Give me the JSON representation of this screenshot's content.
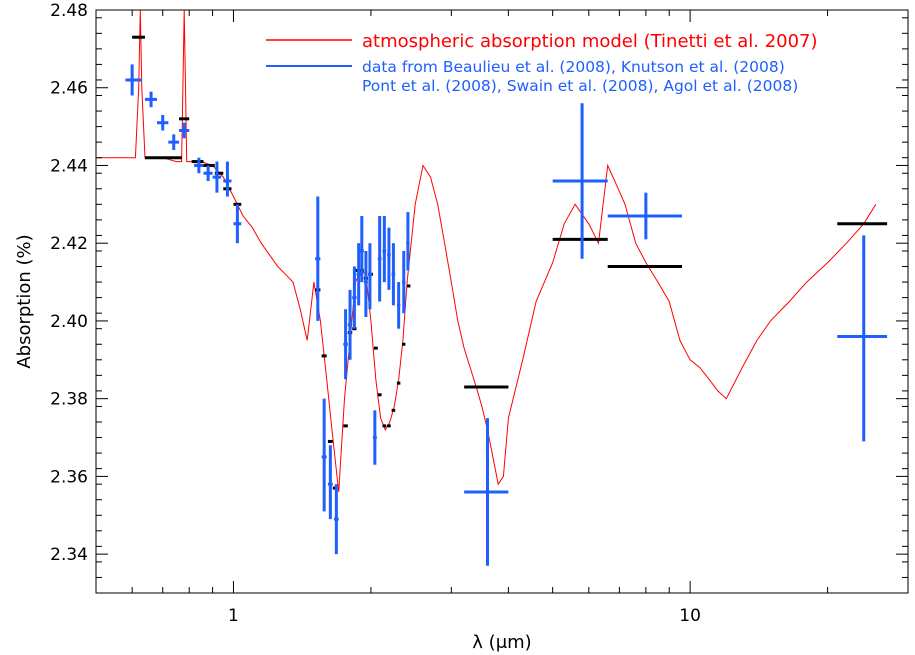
{
  "chart_data": {
    "type": "line",
    "title": "",
    "xlabel": "λ (μm)",
    "ylabel": "Absorption (%)",
    "x_scale": "log",
    "xlim": [
      0.5,
      30
    ],
    "ylim": [
      2.33,
      2.48
    ],
    "grid": false,
    "legend_position": "top-right",
    "colors": {
      "model": "#ff0000",
      "data": "#1f5fff",
      "binned_model": "#000000",
      "axes": "#000000"
    },
    "x_ticks": [
      {
        "value": 1,
        "label": "1"
      },
      {
        "value": 10,
        "label": "10"
      }
    ],
    "y_ticks": [
      {
        "value": 2.34,
        "label": "2.34"
      },
      {
        "value": 2.36,
        "label": "2.36"
      },
      {
        "value": 2.38,
        "label": "2.38"
      },
      {
        "value": 2.4,
        "label": "2.40"
      },
      {
        "value": 2.42,
        "label": "2.42"
      },
      {
        "value": 2.44,
        "label": "2.44"
      },
      {
        "value": 2.46,
        "label": "2.46"
      },
      {
        "value": 2.48,
        "label": "2.48"
      }
    ],
    "legend": {
      "model_label": "atmospheric absorption model (Tinetti et al. 2007)",
      "data_label_line1": "data from Beaulieu et al. (2008), Knutson et al. (2008)",
      "data_label_line2": "Pont et al. (2008), Swain et al. (2008), Agol et al. (2008)"
    },
    "series": [
      {
        "name": "atmospheric absorption model (Tinetti et al. 2007)",
        "kind": "line",
        "x": [
          0.5,
          0.61,
          0.62,
          0.625,
          0.63,
          0.64,
          0.65,
          0.7,
          0.75,
          0.77,
          0.775,
          0.78,
          0.785,
          0.79,
          0.8,
          0.85,
          0.9,
          0.95,
          1.0,
          1.05,
          1.1,
          1.15,
          1.2,
          1.25,
          1.3,
          1.35,
          1.4,
          1.45,
          1.5,
          1.55,
          1.6,
          1.65,
          1.7,
          1.75,
          1.8,
          1.85,
          1.9,
          1.95,
          2.0,
          2.05,
          2.1,
          2.15,
          2.2,
          2.25,
          2.3,
          2.35,
          2.4,
          2.5,
          2.6,
          2.7,
          2.8,
          2.9,
          3.0,
          3.1,
          3.2,
          3.3,
          3.4,
          3.5,
          3.6,
          3.7,
          3.8,
          3.9,
          4.0,
          4.3,
          4.6,
          5.0,
          5.3,
          5.6,
          6.0,
          6.3,
          6.6,
          6.9,
          7.2,
          7.6,
          8.0,
          8.5,
          9.0,
          9.5,
          10.0,
          10.5,
          11.0,
          11.5,
          12.0,
          13.0,
          14.0,
          15.0,
          16.5,
          18.0,
          20.0,
          22.0,
          24.0,
          25.5
        ],
        "y": [
          2.442,
          2.442,
          2.46,
          2.48,
          2.46,
          2.442,
          2.442,
          2.442,
          2.441,
          2.441,
          2.46,
          2.48,
          2.46,
          2.441,
          2.441,
          2.441,
          2.44,
          2.437,
          2.432,
          2.427,
          2.424,
          2.42,
          2.417,
          2.414,
          2.412,
          2.41,
          2.403,
          2.395,
          2.41,
          2.4,
          2.385,
          2.37,
          2.356,
          2.38,
          2.395,
          2.41,
          2.413,
          2.412,
          2.4,
          2.385,
          2.375,
          2.372,
          2.374,
          2.378,
          2.385,
          2.395,
          2.41,
          2.43,
          2.44,
          2.437,
          2.43,
          2.42,
          2.41,
          2.4,
          2.393,
          2.388,
          2.383,
          2.378,
          2.372,
          2.365,
          2.358,
          2.36,
          2.375,
          2.39,
          2.405,
          2.415,
          2.425,
          2.43,
          2.425,
          2.42,
          2.44,
          2.435,
          2.43,
          2.42,
          2.415,
          2.41,
          2.405,
          2.395,
          2.39,
          2.388,
          2.385,
          2.382,
          2.38,
          2.388,
          2.395,
          2.4,
          2.405,
          2.41,
          2.415,
          2.42,
          2.425,
          2.43
        ]
      },
      {
        "name": "",
        "kind": "binned",
        "points": [
          {
            "x": 0.62,
            "x_lo": 0.6,
            "x_hi": 0.64,
            "y": 2.473
          },
          {
            "x": 0.7,
            "x_lo": 0.64,
            "x_hi": 0.77,
            "y": 2.442
          },
          {
            "x": 0.78,
            "x_lo": 0.76,
            "x_hi": 0.8,
            "y": 2.452
          },
          {
            "x": 0.83,
            "x_lo": 0.81,
            "x_hi": 0.86,
            "y": 2.441
          },
          {
            "x": 0.88,
            "x_lo": 0.86,
            "x_hi": 0.91,
            "y": 2.44
          },
          {
            "x": 0.93,
            "x_lo": 0.91,
            "x_hi": 0.95,
            "y": 2.438
          },
          {
            "x": 0.97,
            "x_lo": 0.95,
            "x_hi": 0.99,
            "y": 2.434
          },
          {
            "x": 1.02,
            "x_lo": 1.0,
            "x_hi": 1.04,
            "y": 2.43
          },
          {
            "x": 1.53,
            "x_lo": 1.51,
            "x_hi": 1.55,
            "y": 2.408
          },
          {
            "x": 1.58,
            "x_lo": 1.56,
            "x_hi": 1.6,
            "y": 2.391
          },
          {
            "x": 1.63,
            "x_lo": 1.61,
            "x_hi": 1.65,
            "y": 2.369
          },
          {
            "x": 1.67,
            "x_lo": 1.65,
            "x_hi": 1.69,
            "y": 2.357
          },
          {
            "x": 1.76,
            "x_lo": 1.74,
            "x_hi": 1.78,
            "y": 2.373
          },
          {
            "x": 1.8,
            "x_lo": 1.78,
            "x_hi": 1.82,
            "y": 2.397
          },
          {
            "x": 1.84,
            "x_lo": 1.82,
            "x_hi": 1.86,
            "y": 2.398
          },
          {
            "x": 1.87,
            "x_lo": 1.85,
            "x_hi": 1.89,
            "y": 2.413
          },
          {
            "x": 1.91,
            "x_lo": 1.89,
            "x_hi": 1.93,
            "y": 2.413
          },
          {
            "x": 1.95,
            "x_lo": 1.93,
            "x_hi": 1.97,
            "y": 2.411
          },
          {
            "x": 2.0,
            "x_lo": 1.98,
            "x_hi": 2.02,
            "y": 2.412
          },
          {
            "x": 2.05,
            "x_lo": 2.03,
            "x_hi": 2.07,
            "y": 2.393
          },
          {
            "x": 2.09,
            "x_lo": 2.07,
            "x_hi": 2.11,
            "y": 2.381
          },
          {
            "x": 2.14,
            "x_lo": 2.12,
            "x_hi": 2.16,
            "y": 2.373
          },
          {
            "x": 2.19,
            "x_lo": 2.17,
            "x_hi": 2.21,
            "y": 2.373
          },
          {
            "x": 2.24,
            "x_lo": 2.22,
            "x_hi": 2.26,
            "y": 2.377
          },
          {
            "x": 2.3,
            "x_lo": 2.28,
            "x_hi": 2.32,
            "y": 2.384
          },
          {
            "x": 2.36,
            "x_lo": 2.34,
            "x_hi": 2.38,
            "y": 2.394
          },
          {
            "x": 2.42,
            "x_lo": 2.4,
            "x_hi": 2.44,
            "y": 2.409
          },
          {
            "x": 3.6,
            "x_lo": 3.2,
            "x_hi": 4.0,
            "y": 2.383
          },
          {
            "x": 5.8,
            "x_lo": 5.0,
            "x_hi": 6.6,
            "y": 2.421
          },
          {
            "x": 8.0,
            "x_lo": 6.6,
            "x_hi": 9.6,
            "y": 2.414
          },
          {
            "x": 24.0,
            "x_lo": 21.0,
            "x_hi": 27.0,
            "y": 2.425
          }
        ]
      },
      {
        "name": "data from Beaulieu et al. (2008), Knutson et al. (2008) Pont et al. (2008), Swain et al. (2008), Agol et al. (2008)",
        "kind": "errorbar",
        "points": [
          {
            "x": 0.6,
            "x_lo": 0.58,
            "x_hi": 0.63,
            "y": 2.462,
            "y_lo": 2.458,
            "y_hi": 2.466
          },
          {
            "x": 0.66,
            "x_lo": 0.64,
            "x_hi": 0.68,
            "y": 2.457,
            "y_lo": 2.455,
            "y_hi": 2.459
          },
          {
            "x": 0.7,
            "x_lo": 0.68,
            "x_hi": 0.72,
            "y": 2.451,
            "y_lo": 2.449,
            "y_hi": 2.453
          },
          {
            "x": 0.74,
            "x_lo": 0.72,
            "x_hi": 0.76,
            "y": 2.446,
            "y_lo": 2.444,
            "y_hi": 2.448
          },
          {
            "x": 0.78,
            "x_lo": 0.76,
            "x_hi": 0.8,
            "y": 2.449,
            "y_lo": 2.447,
            "y_hi": 2.451
          },
          {
            "x": 0.84,
            "x_lo": 0.82,
            "x_hi": 0.86,
            "y": 2.44,
            "y_lo": 2.438,
            "y_hi": 2.442
          },
          {
            "x": 0.88,
            "x_lo": 0.86,
            "x_hi": 0.9,
            "y": 2.438,
            "y_lo": 2.436,
            "y_hi": 2.44
          },
          {
            "x": 0.92,
            "x_lo": 0.9,
            "x_hi": 0.94,
            "y": 2.437,
            "y_lo": 2.433,
            "y_hi": 2.441
          },
          {
            "x": 0.97,
            "x_lo": 0.95,
            "x_hi": 0.99,
            "y": 2.436,
            "y_lo": 2.432,
            "y_hi": 2.441
          },
          {
            "x": 1.02,
            "x_lo": 1.0,
            "x_hi": 1.04,
            "y": 2.425,
            "y_lo": 2.42,
            "y_hi": 2.43
          },
          {
            "x": 1.53,
            "x_lo": 1.51,
            "x_hi": 1.55,
            "y": 2.416,
            "y_lo": 2.4,
            "y_hi": 2.432
          },
          {
            "x": 1.58,
            "x_lo": 1.56,
            "x_hi": 1.6,
            "y": 2.365,
            "y_lo": 2.351,
            "y_hi": 2.38
          },
          {
            "x": 1.63,
            "x_lo": 1.61,
            "x_hi": 1.65,
            "y": 2.358,
            "y_lo": 2.349,
            "y_hi": 2.368
          },
          {
            "x": 1.68,
            "x_lo": 1.66,
            "x_hi": 1.7,
            "y": 2.349,
            "y_lo": 2.34,
            "y_hi": 2.358
          },
          {
            "x": 1.76,
            "x_lo": 1.74,
            "x_hi": 1.78,
            "y": 2.394,
            "y_lo": 2.385,
            "y_hi": 2.403
          },
          {
            "x": 1.8,
            "x_lo": 1.78,
            "x_hi": 1.82,
            "y": 2.399,
            "y_lo": 2.39,
            "y_hi": 2.408
          },
          {
            "x": 1.84,
            "x_lo": 1.82,
            "x_hi": 1.86,
            "y": 2.406,
            "y_lo": 2.398,
            "y_hi": 2.414
          },
          {
            "x": 1.88,
            "x_lo": 1.86,
            "x_hi": 1.9,
            "y": 2.412,
            "y_lo": 2.404,
            "y_hi": 2.42
          },
          {
            "x": 1.91,
            "x_lo": 1.89,
            "x_hi": 1.93,
            "y": 2.418,
            "y_lo": 2.41,
            "y_hi": 2.427
          },
          {
            "x": 1.95,
            "x_lo": 1.93,
            "x_hi": 1.97,
            "y": 2.41,
            "y_lo": 2.401,
            "y_hi": 2.418
          },
          {
            "x": 1.99,
            "x_lo": 1.97,
            "x_hi": 2.01,
            "y": 2.412,
            "y_lo": 2.403,
            "y_hi": 2.42
          },
          {
            "x": 2.04,
            "x_lo": 2.02,
            "x_hi": 2.06,
            "y": 2.37,
            "y_lo": 2.363,
            "y_hi": 2.377
          },
          {
            "x": 2.09,
            "x_lo": 2.07,
            "x_hi": 2.11,
            "y": 2.416,
            "y_lo": 2.405,
            "y_hi": 2.427
          },
          {
            "x": 2.14,
            "x_lo": 2.12,
            "x_hi": 2.16,
            "y": 2.418,
            "y_lo": 2.41,
            "y_hi": 2.427
          },
          {
            "x": 2.19,
            "x_lo": 2.17,
            "x_hi": 2.21,
            "y": 2.417,
            "y_lo": 2.408,
            "y_hi": 2.424
          },
          {
            "x": 2.24,
            "x_lo": 2.22,
            "x_hi": 2.26,
            "y": 2.412,
            "y_lo": 2.404,
            "y_hi": 2.42
          },
          {
            "x": 2.3,
            "x_lo": 2.28,
            "x_hi": 2.32,
            "y": 2.404,
            "y_lo": 2.398,
            "y_hi": 2.41
          },
          {
            "x": 2.36,
            "x_lo": 2.34,
            "x_hi": 2.38,
            "y": 2.41,
            "y_lo": 2.402,
            "y_hi": 2.418
          },
          {
            "x": 2.41,
            "x_lo": 2.39,
            "x_hi": 2.43,
            "y": 2.42,
            "y_lo": 2.413,
            "y_hi": 2.428
          },
          {
            "x": 3.6,
            "x_lo": 3.2,
            "x_hi": 4.0,
            "y": 2.356,
            "y_lo": 2.337,
            "y_hi": 2.375
          },
          {
            "x": 5.8,
            "x_lo": 5.0,
            "x_hi": 6.6,
            "y": 2.436,
            "y_lo": 2.416,
            "y_hi": 2.456
          },
          {
            "x": 8.0,
            "x_lo": 6.6,
            "x_hi": 9.6,
            "y": 2.427,
            "y_lo": 2.421,
            "y_hi": 2.433
          },
          {
            "x": 24.0,
            "x_lo": 21.0,
            "x_hi": 27.0,
            "y": 2.396,
            "y_lo": 2.369,
            "y_hi": 2.422
          }
        ]
      }
    ]
  }
}
